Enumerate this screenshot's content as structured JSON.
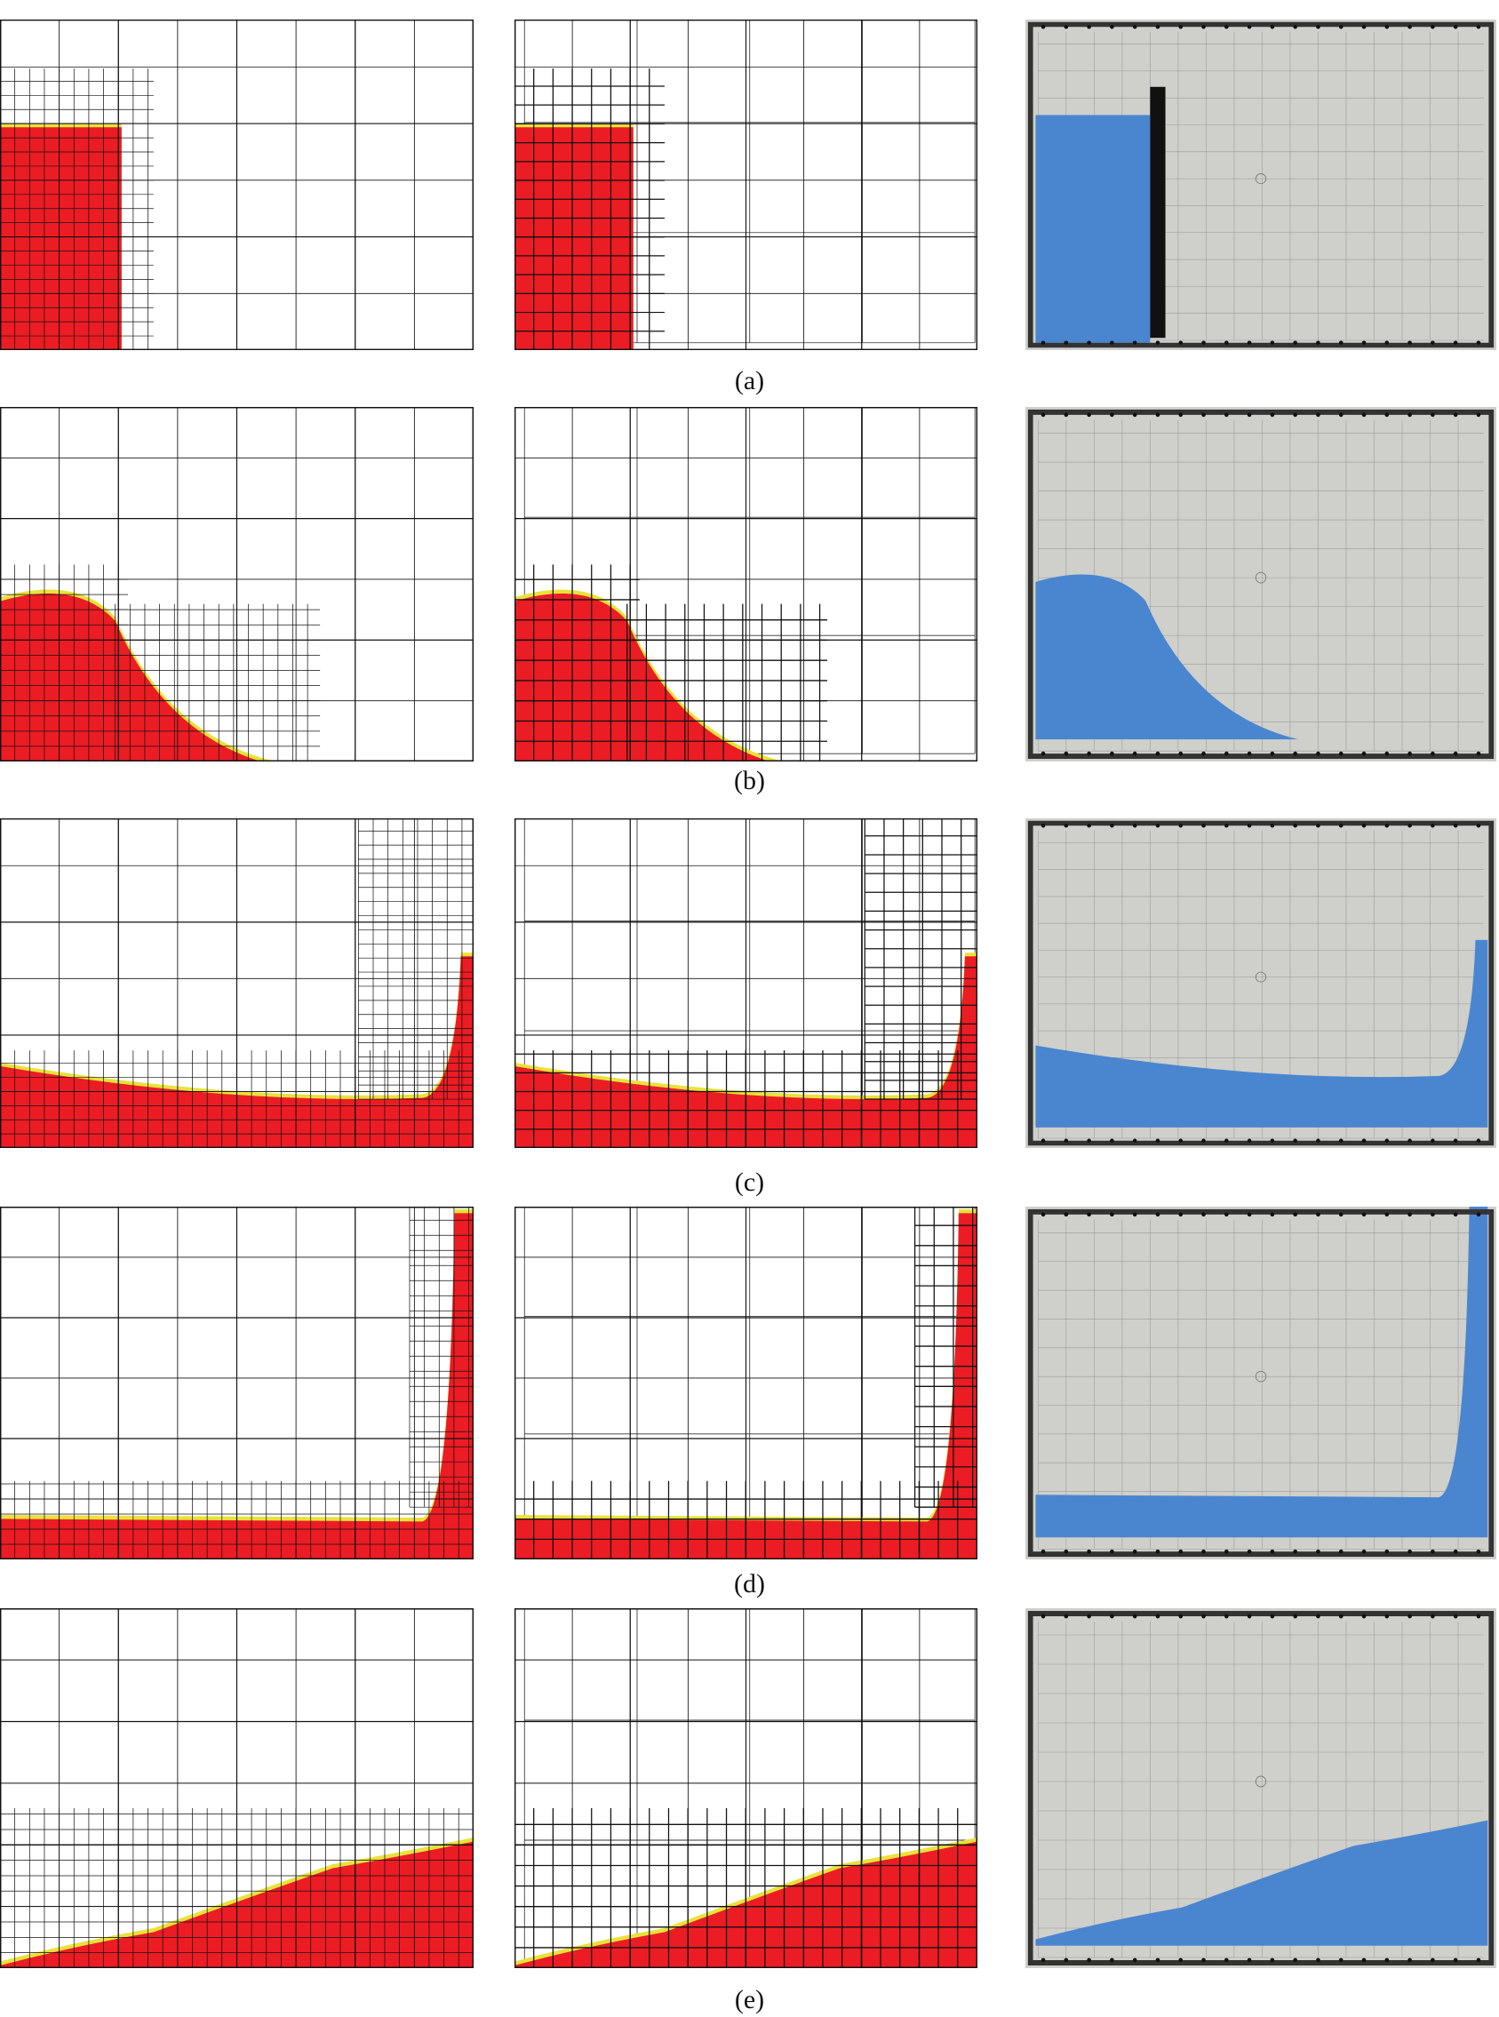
{
  "figure": {
    "subfigures": [
      {
        "label": "(a)",
        "stage": "a"
      },
      {
        "label": "(b)",
        "stage": "b"
      },
      {
        "label": "(c)",
        "stage": "c"
      },
      {
        "label": "(d)",
        "stage": "d"
      },
      {
        "label": "(e)",
        "stage": "e"
      }
    ],
    "columns": [
      "2d-adaptive-mesh",
      "3d-adaptive-mesh",
      "experiment-photo"
    ]
  },
  "colors": {
    "fluid": "#ec1c24",
    "interface_yellow": "#e8e23a",
    "interface_green": "#3cc88c",
    "mesh": "#111111",
    "photo_water": "#4a86cf",
    "photo_background": "#cfcfcb",
    "dam_gate": "#111111"
  }
}
